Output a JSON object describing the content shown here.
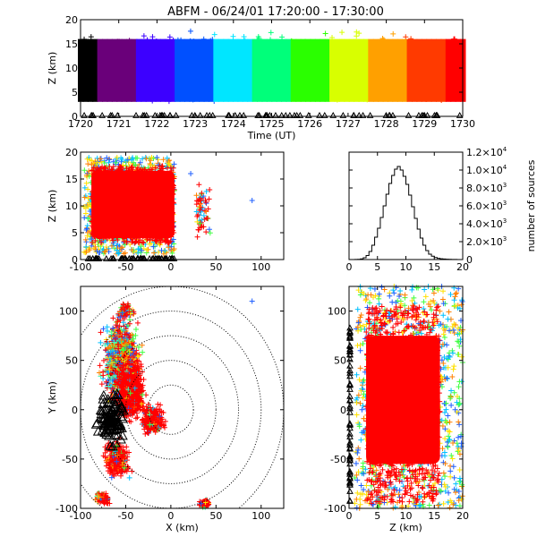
{
  "title": "ABFM - 06/24/01 17:20:00 - 17:30:00",
  "colors": {
    "axis": "#000000",
    "rainbow": [
      "#000000",
      "#6a007a",
      "#3c00ff",
      "#0050ff",
      "#00e6ff",
      "#00ff7a",
      "#2aff00",
      "#d8ff00",
      "#ffa000",
      "#ff3a00",
      "#ff0000"
    ],
    "storm": "#ff0000"
  },
  "chart_data": [
    {
      "id": "time-height",
      "type": "scatter",
      "title": "ABFM - 06/24/01 17:20:00 - 17:30:00",
      "xlabel": "Time (UT)",
      "ylabel": "Z (km)",
      "xlim": [
        1720,
        1730
      ],
      "ylim": [
        0,
        20
      ],
      "xticks": [
        "1720",
        "1721",
        "1722",
        "1723",
        "1724",
        "1725",
        "1726",
        "1727",
        "1728",
        "1729",
        "1730"
      ],
      "yticks": [
        "0",
        "5",
        "10",
        "15",
        "20"
      ],
      "points_note": "dense sources colored by time, mostly 2-18 km, ground strikes (triangles) at 0 km"
    },
    {
      "id": "x-height",
      "type": "scatter",
      "xlabel": "",
      "ylabel": "Z (km)",
      "xlim": [
        -100,
        125
      ],
      "ylim": [
        0,
        20
      ],
      "xticks": [
        "-100",
        "-50",
        "0",
        "50",
        "100"
      ],
      "yticks": [
        "0",
        "5",
        "10",
        "15",
        "20"
      ],
      "clusters": [
        {
          "x_range": [
            -95,
            5
          ],
          "z_range": [
            2,
            18
          ]
        },
        {
          "x_range": [
            28,
            44
          ],
          "z_range": [
            4,
            14
          ]
        }
      ],
      "outliers": [
        {
          "x": 90,
          "z": 11
        },
        {
          "x": 22,
          "z": 16
        }
      ]
    },
    {
      "id": "height-histogram",
      "type": "line",
      "xlabel": "",
      "ylabel": "number of sources",
      "xlim": [
        0,
        20
      ],
      "ylim": [
        0,
        12000
      ],
      "xticks": [
        "0",
        "5",
        "10",
        "15",
        "20"
      ],
      "yticks": [
        {
          "mant": "0",
          "exp": ""
        },
        {
          "mant": "2.0×10",
          "exp": "3"
        },
        {
          "mant": "4.0×10",
          "exp": "3"
        },
        {
          "mant": "6.0×10",
          "exp": "3"
        },
        {
          "mant": "8.0×10",
          "exp": "3"
        },
        {
          "mant": "1.0×10",
          "exp": "4"
        },
        {
          "mant": "1.2×10",
          "exp": "4"
        }
      ],
      "x": [
        0,
        0.5,
        1,
        1.5,
        2,
        2.5,
        3,
        3.5,
        4,
        4.5,
        5,
        5.5,
        6,
        6.5,
        7,
        7.5,
        8,
        8.5,
        9,
        9.5,
        10,
        10.5,
        11,
        11.5,
        12,
        12.5,
        13,
        13.5,
        14,
        14.5,
        15,
        15.5,
        16,
        16.5,
        17,
        17.5,
        18,
        18.5,
        19,
        19.5
      ],
      "values": [
        0,
        0,
        10,
        30,
        80,
        200,
        450,
        900,
        1600,
        2500,
        3500,
        4700,
        6000,
        7300,
        8500,
        9400,
        10100,
        10400,
        10000,
        9300,
        8400,
        7200,
        5900,
        4600,
        3400,
        2400,
        1600,
        1000,
        600,
        380,
        230,
        140,
        90,
        60,
        40,
        25,
        15,
        10,
        5,
        0
      ]
    },
    {
      "id": "plan-view",
      "type": "scatter",
      "xlabel": "X (km)",
      "ylabel": "Y (km)",
      "xlim": [
        -100,
        125
      ],
      "ylim": [
        -100,
        125
      ],
      "xticks": [
        "-100",
        "-50",
        "0",
        "50",
        "100"
      ],
      "yticks": [
        "-100",
        "-50",
        "0",
        "50",
        "100"
      ],
      "range_rings_km": [
        25,
        50,
        75,
        100,
        125
      ],
      "clusters": [
        {
          "x": -45,
          "y": 20,
          "extent": 60
        },
        {
          "x": -60,
          "y": -40,
          "extent": 40
        },
        {
          "x": 35,
          "y": -95,
          "extent": 12
        }
      ]
    },
    {
      "id": "height-y",
      "type": "scatter",
      "xlabel": "Z (km)",
      "ylabel": "",
      "xlim": [
        0,
        20
      ],
      "ylim": [
        -100,
        125
      ],
      "xticks": [
        "0",
        "5",
        "10",
        "15",
        "20"
      ],
      "yticks": [
        "-100",
        "-50",
        "0",
        "50",
        "100"
      ]
    }
  ]
}
